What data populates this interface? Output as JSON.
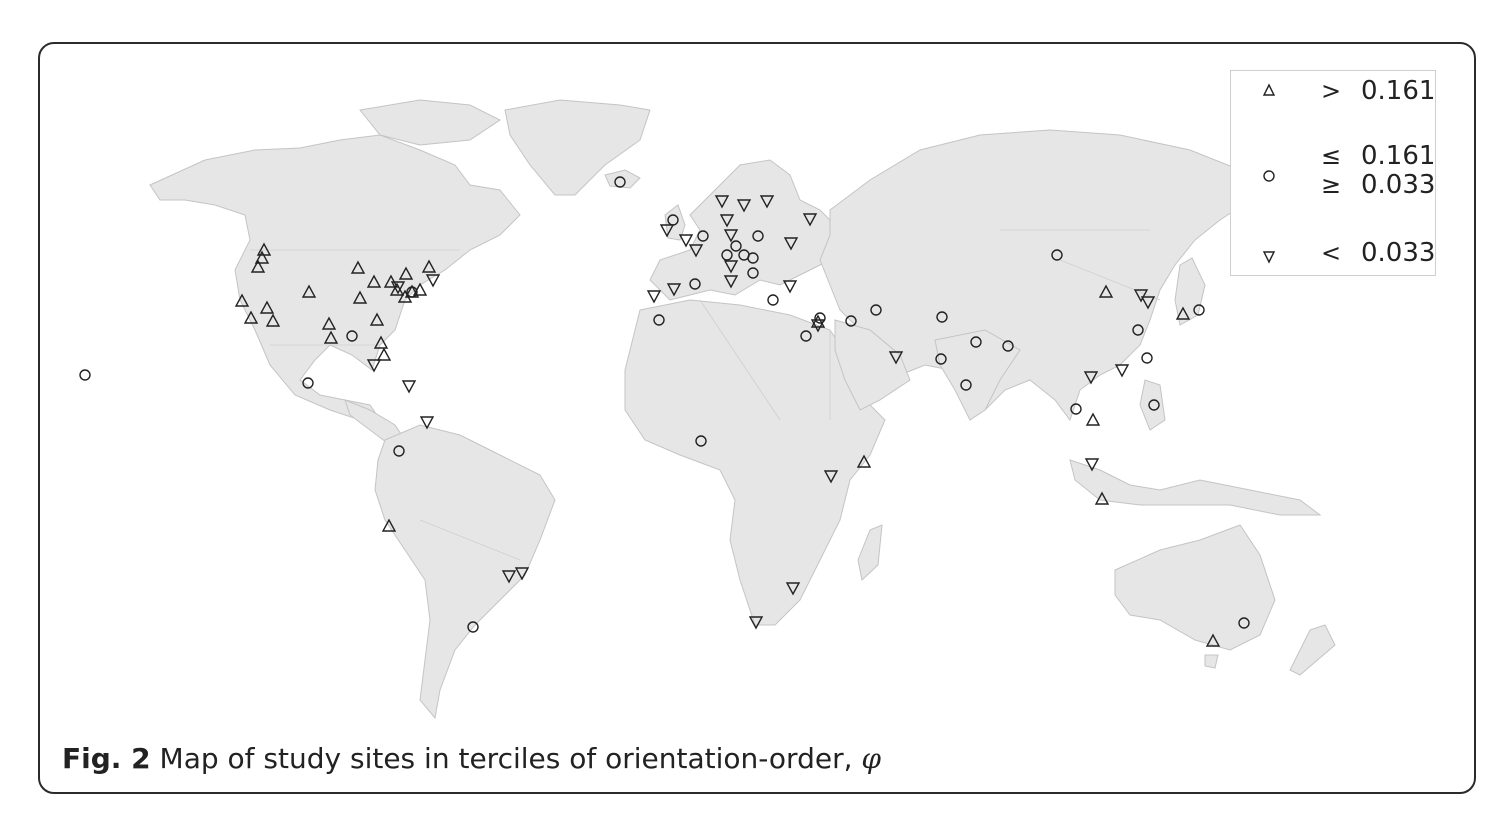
{
  "legend": {
    "items": [
      {
        "symbol": "triangle-up",
        "operator": ">",
        "value": "0.161"
      },
      {
        "symbol": "circle",
        "operator_top": "≤",
        "value_top": "0.161",
        "operator_bottom": "≥",
        "value_bottom": "0.033"
      },
      {
        "symbol": "triangle-down",
        "operator": "<",
        "value": "0.033"
      }
    ]
  },
  "caption": {
    "label": "Fig. 2",
    "text": "Map of study sites in terciles of orientation-order,",
    "symbol": "φ"
  },
  "colors": {
    "land": "#e6e6e6",
    "border": "#c4c4c4",
    "marker": "#222222",
    "frame": "#2b2b2b"
  }
}
